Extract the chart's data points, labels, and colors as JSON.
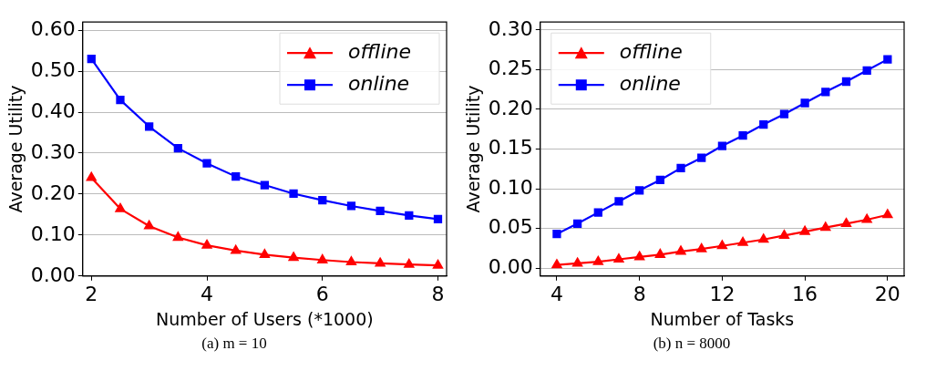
{
  "chart_data": [
    {
      "type": "line",
      "xlabel": "Number of Users (*1000)",
      "ylabel": "Average Utility",
      "annotations": [
        "(a) m = 10"
      ],
      "x": [
        2,
        2.5,
        3,
        3.5,
        4,
        4.5,
        5,
        5.5,
        6,
        6.5,
        7,
        7.5,
        8
      ],
      "series": [
        {
          "name": "offline",
          "color": "#ff0000",
          "marker": "triangle",
          "values": [
            0.24,
            0.164,
            0.122,
            0.094,
            0.075,
            0.062,
            0.052,
            0.045,
            0.039,
            0.034,
            0.031,
            0.028,
            0.026
          ]
        },
        {
          "name": "online",
          "color": "#0000ff",
          "marker": "square",
          "values": [
            0.53,
            0.43,
            0.365,
            0.312,
            0.275,
            0.243,
            0.222,
            0.201,
            0.185,
            0.171,
            0.159,
            0.148,
            0.139
          ]
        }
      ],
      "xlim": [
        1.85,
        8.15
      ],
      "xticks": [
        2,
        4,
        6,
        8
      ],
      "ylim": [
        0,
        0.62
      ],
      "yticks": [
        {
          "value": 0,
          "label": "0.00"
        },
        {
          "value": 0.1,
          "label": "0.10"
        },
        {
          "value": 0.2,
          "label": "0.20"
        },
        {
          "value": 0.3,
          "label": "0.30"
        },
        {
          "value": 0.4,
          "label": "0.40"
        },
        {
          "value": 0.5,
          "label": "0.50"
        },
        {
          "value": 0.6,
          "label": "0.60"
        }
      ],
      "grid": "y",
      "legend": "top right",
      "line_style": "solid"
    },
    {
      "type": "line",
      "xlabel": "Number of Tasks",
      "ylabel": "Average Utility",
      "annotations": [
        "(b) n = 8000"
      ],
      "x": [
        4,
        5,
        6,
        7,
        8,
        9,
        10,
        11,
        12,
        13,
        14,
        15,
        16,
        17,
        18,
        19,
        20
      ],
      "series": [
        {
          "name": "offline",
          "color": "#ff0000",
          "marker": "triangle",
          "values": [
            0.004,
            0.006,
            0.008,
            0.011,
            0.014,
            0.017,
            0.021,
            0.024,
            0.028,
            0.032,
            0.036,
            0.041,
            0.046,
            0.051,
            0.056,
            0.061,
            0.067
          ]
        },
        {
          "name": "online",
          "color": "#0000ff",
          "marker": "square",
          "values": [
            0.043,
            0.056,
            0.07,
            0.084,
            0.098,
            0.111,
            0.126,
            0.139,
            0.154,
            0.167,
            0.181,
            0.194,
            0.208,
            0.222,
            0.235,
            0.249,
            0.263
          ]
        }
      ],
      "xlim": [
        3.2,
        20.8
      ],
      "xticks": [
        4,
        8,
        12,
        16,
        20
      ],
      "ylim": [
        -0.01,
        0.31
      ],
      "yticks": [
        {
          "value": 0,
          "label": "0.00"
        },
        {
          "value": 0.05,
          "label": "0.05"
        },
        {
          "value": 0.1,
          "label": "0.10"
        },
        {
          "value": 0.15,
          "label": "0.15"
        },
        {
          "value": 0.2,
          "label": "0.20"
        },
        {
          "value": 0.25,
          "label": "0.25"
        },
        {
          "value": 0.3,
          "label": "0.30"
        }
      ],
      "grid": "y",
      "legend": "top left",
      "line_style": "solid"
    }
  ]
}
